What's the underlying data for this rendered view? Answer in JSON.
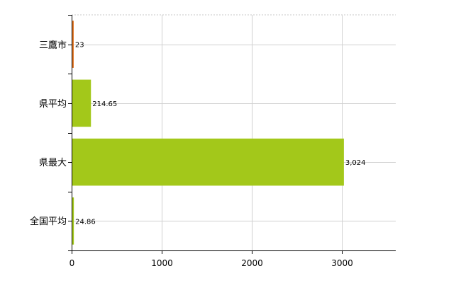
{
  "chart_data": {
    "type": "bar",
    "orientation": "horizontal",
    "title": "",
    "xlabel": "",
    "ylabel": "",
    "categories": [
      "三鷹市",
      "県平均",
      "県最大",
      "全国平均"
    ],
    "values": [
      23,
      214.65,
      3024,
      24.86
    ],
    "value_labels": [
      "23",
      "214.65",
      "3,024",
      "24.86"
    ],
    "colors": [
      "#e2731f",
      "#a3c81a",
      "#a3c81a",
      "#a3c81a"
    ],
    "xlim": [
      0,
      3600
    ],
    "xticks": [
      0,
      1000,
      2000,
      3000
    ],
    "xtick_labels": [
      "0",
      "1000",
      "2000",
      "3000"
    ],
    "grid": true,
    "legend": "none"
  }
}
